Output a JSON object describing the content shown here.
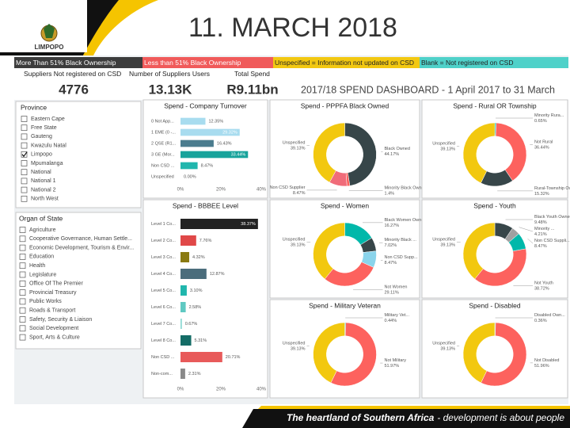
{
  "header": {
    "title": "11. MARCH 2018",
    "logo": "LIMPOPO"
  },
  "legend_bar": [
    "More Than 51% Black Ownership",
    "Less than 51% Black Ownership",
    "Unspecified = Information not updated on CSD",
    "Blank = Not registered on CSD"
  ],
  "kpis": [
    {
      "label": "Suppliers Not registered on CSD",
      "value": 4776
    },
    {
      "label": "Number of Suppliers Users",
      "value": "13.13K"
    },
    {
      "label": "Total Spend",
      "value": "R9.11bn"
    }
  ],
  "dashboard_title": "2017/18 SPEND DASHBOARD - 1 April 2017 to 31 March",
  "province": {
    "title": "Province",
    "items": [
      {
        "label": "Eastern Cape",
        "checked": false
      },
      {
        "label": "Free State",
        "checked": false
      },
      {
        "label": "Gauteng",
        "checked": false
      },
      {
        "label": "Kwazulu Natal",
        "checked": false
      },
      {
        "label": "Limpopo",
        "checked": true
      },
      {
        "label": "Mpumalanga",
        "checked": false
      },
      {
        "label": "National",
        "checked": false
      },
      {
        "label": "National 1",
        "checked": false
      },
      {
        "label": "National 2",
        "checked": false
      },
      {
        "label": "North West",
        "checked": false
      }
    ]
  },
  "organ_of_state": {
    "title": "Organ of State",
    "items": [
      {
        "label": "Agriculture",
        "checked": false
      },
      {
        "label": "Cooperative Governance, Human Settle...",
        "checked": false
      },
      {
        "label": "Economic Development, Tourism & Envir...",
        "checked": false
      },
      {
        "label": "Education",
        "checked": false
      },
      {
        "label": "Health",
        "checked": false
      },
      {
        "label": "Legislature",
        "checked": false
      },
      {
        "label": "Office Of The Premier",
        "checked": false
      },
      {
        "label": "Provincial Treasury",
        "checked": false
      },
      {
        "label": "Public Works",
        "checked": false
      },
      {
        "label": "Roads & Transport",
        "checked": false
      },
      {
        "label": "Safety, Security & Liaison",
        "checked": false
      },
      {
        "label": "Social Development",
        "checked": false
      },
      {
        "label": "Sport, Arts & Culture",
        "checked": false
      }
    ]
  },
  "footer": {
    "bold": "The heartland of Southern Africa",
    "rest": "- development is about people"
  },
  "chart_data": [
    {
      "type": "bar",
      "title": "Spend - Company Turnover",
      "categories": [
        "0 Not App...",
        "1 EME (0 -...",
        "2 QSE (R1...",
        "3 GE (Mor...",
        "Non CSD ...",
        "Unspecified"
      ],
      "values": [
        12.35,
        29.32,
        16.43,
        33.44,
        8.47,
        0.0
      ],
      "value_labels": [
        "12.35%",
        "29.32%",
        "16.43%",
        "33.44%",
        "8.47%",
        "0.00%"
      ],
      "colors": [
        "#a8dcef",
        "#a8dcef",
        "#4b7c8e",
        "#17a39b",
        "#20b6ad",
        "#20b6ad"
      ],
      "xlim": [
        0,
        40
      ],
      "xticks": [
        {
          "value": 0,
          "label": "0%"
        },
        {
          "value": 20,
          "label": "20%"
        },
        {
          "value": 40,
          "label": "40%"
        }
      ]
    },
    {
      "type": "donut",
      "title": "Spend - PPPFA Black Owned",
      "categories": [
        "Black Owned",
        "Minority Black Owned",
        "Non CSD Supplier",
        "Unspecified"
      ],
      "values": [
        44.17,
        1.4,
        8.47,
        39.13
      ],
      "value_labels": [
        "44.17%",
        "1.4%",
        "8.47%",
        "39.13%"
      ],
      "colors": [
        "#374649",
        "#fd625e",
        "#f06c7a",
        "#f2c80f"
      ]
    },
    {
      "type": "donut",
      "title": "Spend - Rural OR Township",
      "categories": [
        "Minority Rura...",
        "Not Rural",
        "Rural-Township Owned",
        "Unspecified"
      ],
      "values": [
        0.65,
        36.44,
        15.32,
        39.13
      ],
      "value_labels": [
        "0.65%",
        "36.44%",
        "15.32%",
        "39.13%"
      ],
      "colors": [
        "#01b8aa",
        "#fd625e",
        "#374649",
        "#f2c80f"
      ]
    },
    {
      "type": "bar",
      "title": "Spend - BBBEE Level",
      "categories": [
        "Level 1 Co...",
        "Level 2 Co...",
        "Level 3 Co...",
        "Level 4 Co...",
        "Level 5 Co...",
        "Level 6 Co...",
        "Level 7 Co...",
        "Level 8 Co...",
        "Non CSD ...",
        "Non-com..."
      ],
      "values": [
        38.37,
        7.76,
        4.32,
        12.87,
        3.1,
        2.58,
        0.67,
        5.31,
        20.71,
        2.31
      ],
      "value_labels": [
        "38.37%",
        "7.76%",
        "4.32%",
        "12.87%",
        "3.10%",
        "2.58%",
        "0.67%",
        "5.31%",
        "20.71%",
        "2.31%"
      ],
      "colors": [
        "#222222",
        "#e04848",
        "#8a7a12",
        "#4b6d7c",
        "#20b6ad",
        "#5fc9c2",
        "#8ad8d2",
        "#146c66",
        "#e85a5a",
        "#8a8a8a"
      ],
      "xlim": [
        0,
        40
      ],
      "xticks": [
        {
          "value": 0,
          "label": "0%"
        },
        {
          "value": 20,
          "label": "20%"
        },
        {
          "value": 40,
          "label": "40%"
        }
      ]
    },
    {
      "type": "donut",
      "title": "Spend - Women",
      "categories": [
        "Black Women Owned",
        "Minority Black ...",
        "Non CSD Supp...",
        "Not Women",
        "Unspecified"
      ],
      "values": [
        16.27,
        7.02,
        8.47,
        29.11,
        39.13
      ],
      "value_labels": [
        "16.27%",
        "7.02%",
        "8.47%",
        "29.11%",
        "39.13%"
      ],
      "colors": [
        "#01b8aa",
        "#374649",
        "#8ad4eb",
        "#fd625e",
        "#f2c80f"
      ]
    },
    {
      "type": "donut",
      "title": "Spend - Youth",
      "categories": [
        "Black Youth Owned",
        "Minority ...",
        "Non CSD Suppli...",
        "Not Youth",
        "Unspecified"
      ],
      "values": [
        9.48,
        4.21,
        8.47,
        38.72,
        39.13
      ],
      "value_labels": [
        "9.48%",
        "4.21%",
        "8.47%",
        "38.72%",
        "39.13%"
      ],
      "colors": [
        "#374649",
        "#a0a0a0",
        "#01b8aa",
        "#fd625e",
        "#f2c80f"
      ]
    },
    {
      "type": "donut",
      "title": "Spend - Military Veteran",
      "categories": [
        "Military Vet...",
        "Not Military",
        "Unspecified"
      ],
      "values": [
        0.44,
        51.97,
        39.13
      ],
      "value_labels": [
        "0.44%",
        "51.97%",
        "39.13%"
      ],
      "colors": [
        "#01b8aa",
        "#fd625e",
        "#f2c80f"
      ]
    },
    {
      "type": "donut",
      "title": "Spend - Disabled",
      "categories": [
        "Disabled Own...",
        "Not Disabled",
        "Unspecified"
      ],
      "values": [
        0.36,
        51.96,
        39.13
      ],
      "value_labels": [
        "0.36%",
        "51.96%",
        "39.13%"
      ],
      "colors": [
        "#01b8aa",
        "#fd625e",
        "#f2c80f"
      ]
    }
  ]
}
